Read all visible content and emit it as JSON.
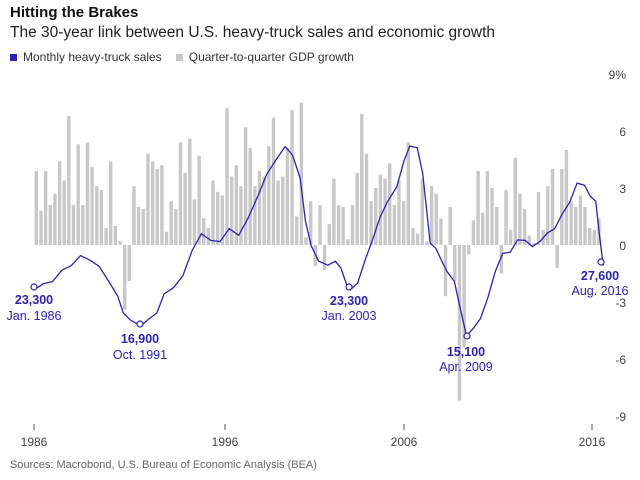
{
  "title": "Hitting the Brakes",
  "subtitle": "The 30-year link between U.S. heavy-truck sales and economic growth",
  "source": "Sources: Macrobond, U.S. Bureau of Economic Analysis (BEA)",
  "legend": [
    {
      "label": "Monthly heavy-truck sales",
      "color": "#2b22b8"
    },
    {
      "label": "Quarter-to-quarter GDP growth",
      "color": "#c8c8c8"
    }
  ],
  "chart_data": {
    "type": "bar",
    "x_ticks": [
      "1986",
      "1996",
      "2006",
      "2016"
    ],
    "y_ticks": [
      "9%",
      "6",
      "3",
      "0",
      "-3",
      "-6",
      "-9"
    ],
    "y_tick_values": [
      9,
      6,
      3,
      0,
      -3,
      -6,
      -9
    ],
    "ylim": [
      -9,
      9
    ],
    "xlim": [
      1985.7,
      2016.7
    ],
    "series": [
      {
        "name": "Quarter-to-quarter GDP growth",
        "type": "bar",
        "axis": "right",
        "color": "#c8c8c8",
        "x": [
          1986.0,
          1986.25,
          1986.5,
          1986.75,
          1987.0,
          1987.25,
          1987.5,
          1987.75,
          1988.0,
          1988.25,
          1988.5,
          1988.75,
          1989.0,
          1989.25,
          1989.5,
          1989.75,
          1990.0,
          1990.25,
          1990.5,
          1990.75,
          1991.0,
          1991.25,
          1991.5,
          1991.75,
          1992.0,
          1992.25,
          1992.5,
          1992.75,
          1993.0,
          1993.25,
          1993.5,
          1993.75,
          1994.0,
          1994.25,
          1994.5,
          1994.75,
          1995.0,
          1995.25,
          1995.5,
          1995.75,
          1996.0,
          1996.25,
          1996.5,
          1996.75,
          1997.0,
          1997.25,
          1997.5,
          1997.75,
          1998.0,
          1998.25,
          1998.5,
          1998.75,
          1999.0,
          1999.25,
          1999.5,
          1999.75,
          2000.0,
          2000.25,
          2000.5,
          2000.75,
          2001.0,
          2001.25,
          2001.5,
          2001.75,
          2002.0,
          2002.25,
          2002.5,
          2002.75,
          2003.0,
          2003.25,
          2003.5,
          2003.75,
          2004.0,
          2004.25,
          2004.5,
          2004.75,
          2005.0,
          2005.25,
          2005.5,
          2005.75,
          2006.0,
          2006.25,
          2006.5,
          2006.75,
          2007.0,
          2007.25,
          2007.5,
          2007.75,
          2008.0,
          2008.25,
          2008.5,
          2008.75,
          2009.0,
          2009.25,
          2009.5,
          2009.75,
          2010.0,
          2010.25,
          2010.5,
          2010.75,
          2011.0,
          2011.25,
          2011.5,
          2011.75,
          2012.0,
          2012.25,
          2012.5,
          2012.75,
          2013.0,
          2013.25,
          2013.5,
          2013.75,
          2014.0,
          2014.25,
          2014.5,
          2014.75,
          2015.0,
          2015.25,
          2015.5,
          2015.75,
          2016.0,
          2016.25
        ],
        "values": [
          3.9,
          1.8,
          3.9,
          2.1,
          2.7,
          4.4,
          3.4,
          6.8,
          2.1,
          5.3,
          2.1,
          5.4,
          4.1,
          3.1,
          2.9,
          0.9,
          4.4,
          1.0,
          0.2,
          -3.4,
          -1.9,
          3.1,
          2.0,
          1.9,
          4.8,
          4.4,
          4.0,
          4.2,
          0.7,
          2.3,
          1.9,
          5.4,
          3.8,
          5.6,
          2.4,
          4.7,
          1.4,
          0.9,
          3.4,
          2.8,
          2.6,
          7.2,
          3.6,
          4.2,
          3.1,
          6.2,
          5.1,
          3.1,
          3.9,
          3.6,
          5.2,
          6.7,
          3.4,
          3.6,
          5.1,
          7.1,
          1.5,
          7.5,
          0.4,
          2.3,
          -1.1,
          2.1,
          -1.3,
          1.1,
          3.5,
          2.1,
          2.0,
          0.3,
          2.1,
          3.8,
          6.9,
          4.8,
          2.3,
          3.0,
          3.7,
          3.5,
          4.3,
          2.1,
          3.4,
          2.3,
          5.4,
          0.9,
          0.6,
          3.5,
          0.2,
          3.1,
          2.7,
          1.4,
          -2.7,
          2.0,
          -1.9,
          -8.2,
          -5.4,
          -0.5,
          1.3,
          3.9,
          1.7,
          3.9,
          3.0,
          2.0,
          -1.5,
          2.9,
          0.8,
          4.6,
          2.7,
          1.9,
          0.5,
          0.1,
          2.8,
          0.8,
          3.1,
          4.0,
          -1.2,
          4.0,
          5.0,
          2.3,
          2.0,
          2.6,
          2.0,
          0.9,
          0.8,
          1.4
        ]
      },
      {
        "name": "Monthly heavy-truck sales",
        "type": "line",
        "axis": "none",
        "color": "#2b22b8",
        "points": [
          [
            1986.0,
            23300
          ],
          [
            1986.5,
            24400
          ],
          [
            1987.0,
            24800
          ],
          [
            1987.5,
            26800
          ],
          [
            1988.0,
            27600
          ],
          [
            1988.5,
            29400
          ],
          [
            1989.0,
            28600
          ],
          [
            1989.5,
            27500
          ],
          [
            1990.0,
            24900
          ],
          [
            1990.5,
            22200
          ],
          [
            1990.8,
            19200
          ],
          [
            1991.2,
            17900
          ],
          [
            1991.75,
            16900
          ],
          [
            1992.2,
            18200
          ],
          [
            1992.6,
            19200
          ],
          [
            1993.0,
            22600
          ],
          [
            1993.5,
            23700
          ],
          [
            1994.0,
            25800
          ],
          [
            1994.5,
            30300
          ],
          [
            1995.0,
            33300
          ],
          [
            1995.5,
            32100
          ],
          [
            1996.0,
            31900
          ],
          [
            1996.5,
            34200
          ],
          [
            1997.0,
            33000
          ],
          [
            1997.5,
            36000
          ],
          [
            1998.0,
            39700
          ],
          [
            1998.5,
            43800
          ],
          [
            1999.0,
            46400
          ],
          [
            1999.5,
            48800
          ],
          [
            1999.9,
            47300
          ],
          [
            2000.3,
            43300
          ],
          [
            2000.6,
            35400
          ],
          [
            2000.9,
            31200
          ],
          [
            2001.3,
            28400
          ],
          [
            2001.8,
            27700
          ],
          [
            2002.2,
            28400
          ],
          [
            2002.5,
            27200
          ],
          [
            2002.8,
            24300
          ],
          [
            2003.0,
            23300
          ],
          [
            2003.4,
            24500
          ],
          [
            2003.8,
            28600
          ],
          [
            2004.2,
            32200
          ],
          [
            2004.6,
            36200
          ],
          [
            2005.0,
            39000
          ],
          [
            2005.5,
            41600
          ],
          [
            2005.9,
            46300
          ],
          [
            2006.2,
            48900
          ],
          [
            2006.6,
            48600
          ],
          [
            2006.9,
            44000
          ],
          [
            2007.3,
            31600
          ],
          [
            2007.6,
            30700
          ],
          [
            2007.9,
            28600
          ],
          [
            2008.2,
            26600
          ],
          [
            2008.6,
            24800
          ],
          [
            2008.9,
            20300
          ],
          [
            2009.25,
            15100
          ],
          [
            2009.6,
            16400
          ],
          [
            2010.0,
            18200
          ],
          [
            2010.4,
            21900
          ],
          [
            2010.8,
            26600
          ],
          [
            2011.2,
            29800
          ],
          [
            2011.6,
            30000
          ],
          [
            2012.0,
            32200
          ],
          [
            2012.4,
            32100
          ],
          [
            2012.8,
            31000
          ],
          [
            2013.2,
            31900
          ],
          [
            2013.6,
            33400
          ],
          [
            2014.0,
            34200
          ],
          [
            2014.4,
            36800
          ],
          [
            2014.8,
            38900
          ],
          [
            2015.2,
            42300
          ],
          [
            2015.6,
            41900
          ],
          [
            2015.9,
            40000
          ],
          [
            2016.2,
            39100
          ],
          [
            2016.4,
            33200
          ],
          [
            2016.6,
            27600
          ]
        ]
      }
    ],
    "annotations": [
      {
        "value": "23,300",
        "date": "Jan. 1986"
      },
      {
        "value": "16,900",
        "date": "Oct. 1991"
      },
      {
        "value": "23,300",
        "date": "Jan. 2003"
      },
      {
        "value": "15,100",
        "date": "Apr. 2009"
      },
      {
        "value": "27,600",
        "date": "Aug. 2016"
      }
    ]
  }
}
